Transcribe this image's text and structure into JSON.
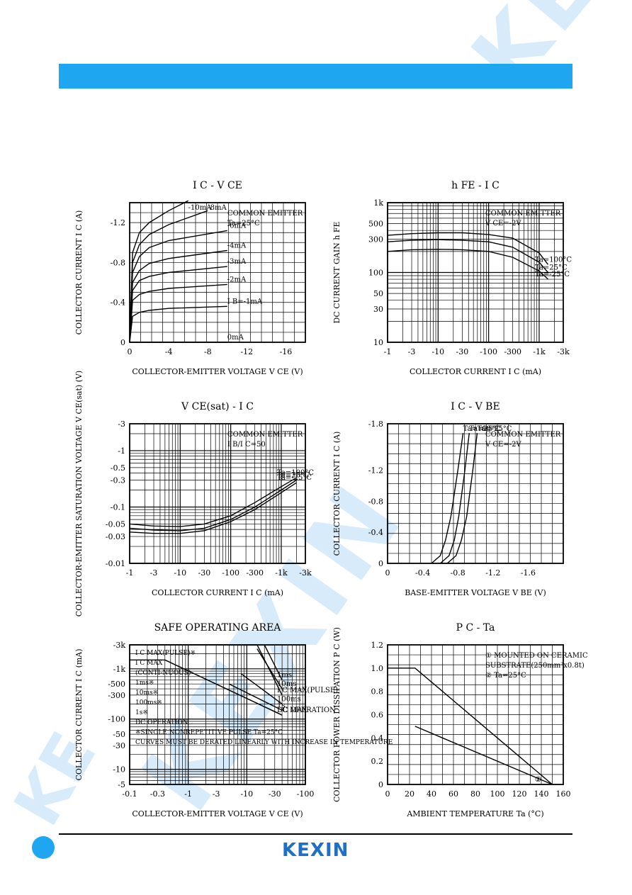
{
  "watermark": {
    "text1": "KEXIN",
    "text2": "KEXIN",
    "text3": "KE"
  },
  "footer": {
    "logo": "KEXIN"
  },
  "colors": {
    "banner": "#1ea7f0",
    "logo": "#1e6fc8",
    "watermark": "#d8ebfa"
  },
  "chart_data": [
    {
      "id": "ic-vce",
      "type": "line",
      "title": "I_C - V_CE",
      "xlabel": "COLLECTOR-EMITTER VOLTAGE V_CE (V)",
      "ylabel": "COLLECTOR CURRENT I_C (A)",
      "xlim": [
        0,
        -18
      ],
      "ylim": [
        0,
        -1.4
      ],
      "xticks": [
        "0",
        "-4",
        "-8",
        "-12",
        "-16"
      ],
      "yticks": [
        "0",
        "-0.4",
        "-0.8",
        "-1.2"
      ],
      "note": [
        "COMMON EMITTER",
        "Ta=25°C"
      ],
      "series": [
        {
          "name": "-10mA",
          "x": [
            0,
            -0.3,
            -1,
            -2,
            -4,
            -6
          ],
          "y": [
            0,
            -0.9,
            -1.1,
            -1.2,
            -1.32,
            -1.42
          ]
        },
        {
          "name": "-8mA",
          "x": [
            0,
            -0.3,
            -1,
            -2,
            -4,
            -8
          ],
          "y": [
            0,
            -0.8,
            -0.98,
            -1.08,
            -1.18,
            -1.32
          ]
        },
        {
          "name": "-6mA",
          "x": [
            0,
            -0.3,
            -1,
            -2,
            -4,
            -10
          ],
          "y": [
            0,
            -0.7,
            -0.86,
            -0.95,
            -1.02,
            -1.12
          ]
        },
        {
          "name": "-4mA",
          "x": [
            0,
            -0.3,
            -1,
            -2,
            -4,
            -10
          ],
          "y": [
            0,
            -0.6,
            -0.72,
            -0.79,
            -0.84,
            -0.92
          ]
        },
        {
          "name": "-3mA",
          "x": [
            0,
            -0.3,
            -1,
            -2,
            -4,
            -10
          ],
          "y": [
            0,
            -0.52,
            -0.62,
            -0.66,
            -0.7,
            -0.76
          ]
        },
        {
          "name": "-2mA",
          "x": [
            0,
            -0.3,
            -1,
            -2,
            -4,
            -10
          ],
          "y": [
            0,
            -0.42,
            -0.48,
            -0.51,
            -0.54,
            -0.58
          ]
        },
        {
          "name": "I_B=-1mA",
          "x": [
            0,
            -0.3,
            -1,
            -2,
            -4,
            -10
          ],
          "y": [
            0,
            -0.26,
            -0.3,
            -0.32,
            -0.34,
            -0.36
          ]
        },
        {
          "name": "0mA",
          "x": [
            0,
            -10
          ],
          "y": [
            0,
            0
          ]
        }
      ]
    },
    {
      "id": "hfe-ic",
      "type": "line",
      "title": "h_FE - I_C",
      "xlabel": "COLLECTOR CURRENT I_C (mA)",
      "ylabel": "DC CURRENT GAIN h_FE",
      "xscale": "log",
      "yscale": "log",
      "xticks": [
        "-1",
        "-3",
        "-10",
        "-30",
        "-100",
        "-300",
        "-1k",
        "-3k"
      ],
      "yticks": [
        "10",
        "30",
        "50",
        "100",
        "300",
        "500",
        "1k"
      ],
      "note": [
        "COMMON EMITTER",
        "V_CE=-2V"
      ],
      "series": [
        {
          "name": "Ta=100°C",
          "x": [
            1,
            3,
            10,
            30,
            100,
            300,
            1000,
            1500
          ],
          "y": [
            340,
            360,
            370,
            370,
            350,
            310,
            190,
            130
          ]
        },
        {
          "name": "Ta=25°C",
          "x": [
            1,
            3,
            10,
            30,
            100,
            300,
            1000,
            1500
          ],
          "y": [
            275,
            290,
            295,
            290,
            275,
            230,
            140,
            100
          ]
        },
        {
          "name": "Ta=-25°C",
          "x": [
            1,
            3,
            10,
            30,
            100,
            300,
            1000,
            1500
          ],
          "y": [
            200,
            212,
            215,
            212,
            200,
            165,
            105,
            80
          ]
        }
      ]
    },
    {
      "id": "vcesat-ic",
      "type": "line",
      "title": "V_CE(sat) - I_C",
      "xlabel": "COLLECTOR CURRENT I_C (mA)",
      "ylabel": "COLLECTOR-EMITTER SATURATION VOLTAGE V_CE(sat) (V)",
      "xscale": "log",
      "yscale": "log",
      "xticks": [
        "-1",
        "-3",
        "-10",
        "-30",
        "-100",
        "-300",
        "-1k",
        "-3k"
      ],
      "yticks": [
        "-0.01",
        "-0.03",
        "-0.05",
        "-0.1",
        "-0.3",
        "-0.5",
        "-1",
        "-3"
      ],
      "note": [
        "COMMON EMITTER",
        "I_B/I_C=50"
      ],
      "series": [
        {
          "name": "Ta=100°C",
          "x": [
            1,
            3,
            10,
            30,
            100,
            300,
            1000,
            2000
          ],
          "y": [
            0.05,
            0.046,
            0.045,
            0.05,
            0.07,
            0.12,
            0.23,
            0.33
          ]
        },
        {
          "name": "Ta=25°C",
          "x": [
            1,
            3,
            10,
            30,
            100,
            300,
            1000,
            2000
          ],
          "y": [
            0.042,
            0.039,
            0.038,
            0.042,
            0.06,
            0.1,
            0.2,
            0.3
          ]
        },
        {
          "name": "Ta=-25°C",
          "x": [
            1,
            3,
            10,
            30,
            100,
            300,
            1000,
            2000
          ],
          "y": [
            0.036,
            0.034,
            0.034,
            0.038,
            0.055,
            0.09,
            0.18,
            0.27
          ]
        }
      ]
    },
    {
      "id": "ic-vbe",
      "type": "line",
      "title": "I_C - V_BE",
      "xlabel": "BASE-EMITTER VOLTAGE V_BE (V)",
      "ylabel": "COLLECTOR CURRENT I_C (A)",
      "xlim": [
        0,
        -2.0
      ],
      "ylim": [
        0,
        -1.8
      ],
      "xticks": [
        "0",
        "-0.4",
        "-0.8",
        "-1.2",
        "-1.6"
      ],
      "yticks": [
        "0",
        "-0.4",
        "-0.8",
        "-1.2",
        "-1.8"
      ],
      "note": [
        "COMMON EMITTER",
        "V_CE=-2V"
      ],
      "series": [
        {
          "name": "Ta=100°C",
          "x": [
            -0.5,
            -0.6,
            -0.66,
            -0.72,
            -0.8,
            -0.86
          ],
          "y": [
            0,
            -0.1,
            -0.3,
            -0.6,
            -1.2,
            -1.68
          ]
        },
        {
          "name": "Ta=25°C",
          "x": [
            -0.6,
            -0.7,
            -0.76,
            -0.81,
            -0.88,
            -0.93
          ],
          "y": [
            0,
            -0.1,
            -0.3,
            -0.6,
            -1.2,
            -1.68
          ]
        },
        {
          "name": "Ta=-25°C",
          "x": [
            -0.68,
            -0.78,
            -0.84,
            -0.9,
            -0.97,
            -1.02
          ],
          "y": [
            0,
            -0.1,
            -0.3,
            -0.6,
            -1.2,
            -1.68
          ]
        }
      ]
    },
    {
      "id": "soa",
      "type": "line",
      "title": "SAFE OPERATING AREA",
      "xlabel": "COLLECTOR-EMITTER VOLTAGE V_CE (V)",
      "ylabel": "COLLECTOR CURRENT I_C (mA)",
      "xscale": "log",
      "yscale": "log",
      "xticks": [
        "-0.1",
        "-0.3",
        "-1",
        "-3",
        "-10",
        "-30",
        "-100"
      ],
      "yticks": [
        "-5",
        "-10",
        "-30",
        "-50",
        "-100",
        "-300",
        "-500",
        "-1k",
        "-3k"
      ],
      "annotations": [
        "I_C MAX(PULSE)※",
        "I_C MAX",
        "(CONTI-NUOUS)",
        "1ms※",
        "10ms※",
        "100ms※",
        "1s※",
        "DC OPERATION",
        "※SINGLE NONREPETITIVE PULSE Ta=25°C",
        "CURVES MUST BE DERATED LINEARLY WITH INCREASE IN TEMPERATURE"
      ],
      "series": [
        {
          "name": "I_C MAX(PULSE)",
          "x": [
            0.1,
            15,
            40
          ],
          "y": [
            3000,
            3000,
            300
          ]
        },
        {
          "name": "I_C MAX",
          "x": [
            0.1,
            0.4,
            40
          ],
          "y": [
            1500,
            1500,
            120
          ]
        },
        {
          "name": "DC OPERATION",
          "x": [
            0.4,
            40
          ],
          "y": [
            1500,
            120
          ]
        },
        {
          "name": "1ms",
          "x": [
            20,
            40
          ],
          "y": [
            3000,
            600
          ]
        },
        {
          "name": "10ms",
          "x": [
            15,
            40
          ],
          "y": [
            2500,
            400
          ]
        },
        {
          "name": "100ms",
          "x": [
            8,
            40
          ],
          "y": [
            800,
            200
          ]
        },
        {
          "name": "1s",
          "x": [
            5,
            40
          ],
          "y": [
            500,
            150
          ]
        }
      ]
    },
    {
      "id": "pc-ta",
      "type": "line",
      "title": "P_C - Ta",
      "xlabel": "AMBIENT TEMPERATURE Ta (°C)",
      "ylabel": "COLLECTOR POWER DISSIPATION P_C (W)",
      "xlim": [
        0,
        160
      ],
      "ylim": [
        0,
        1.2
      ],
      "xticks": [
        "0",
        "20",
        "40",
        "60",
        "80",
        "100",
        "120",
        "140",
        "160"
      ],
      "yticks": [
        "0",
        "0.2",
        "0.4",
        "0.6",
        "0.8",
        "1.0",
        "1.2"
      ],
      "note": [
        "① MOUNTED ON CERAMIC",
        "SUBSTRATE(250mm²x0.8t)",
        "② Ta=25°C"
      ],
      "series": [
        {
          "name": "①",
          "x": [
            0,
            25,
            100,
            150
          ],
          "y": [
            1.0,
            1.0,
            0.4,
            0
          ]
        },
        {
          "name": "②",
          "x": [
            25,
            150
          ],
          "y": [
            0.5,
            0
          ]
        }
      ]
    }
  ]
}
